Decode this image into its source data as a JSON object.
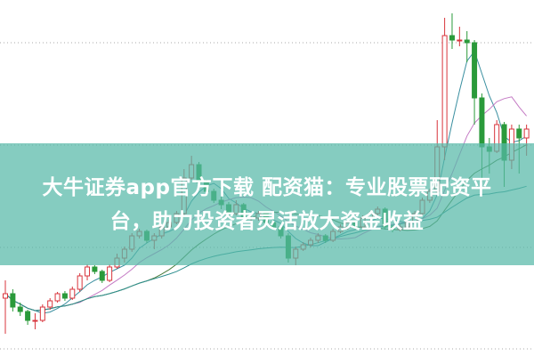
{
  "chart_data": {
    "type": "candlestick",
    "title": "",
    "xlabel": "",
    "ylabel": "",
    "ylim": [
      0,
      40
    ],
    "grid": "dotted horizontal",
    "up_color": "#d8343c",
    "down_color": "#2a9a3a",
    "ma_colors": [
      "#3a8fa0",
      "#c47ac4",
      "#4a7a3a",
      "#2f8f8f"
    ],
    "candles": [
      [
        6.5,
        8.5,
        2.5,
        7.0
      ],
      [
        7.0,
        7.5,
        5.0,
        5.5
      ],
      [
        5.5,
        6.0,
        4.5,
        5.0
      ],
      [
        5.0,
        5.2,
        3.5,
        4.0
      ],
      [
        4.0,
        4.8,
        3.0,
        4.0
      ],
      [
        4.0,
        5.8,
        3.8,
        5.5
      ],
      [
        5.5,
        6.5,
        5.2,
        6.2
      ],
      [
        6.2,
        7.2,
        6.0,
        7.0
      ],
      [
        7.0,
        7.3,
        6.2,
        6.5
      ],
      [
        6.5,
        7.8,
        6.3,
        7.5
      ],
      [
        7.5,
        9.3,
        7.2,
        9.0
      ],
      [
        9.0,
        10.3,
        8.5,
        10.0
      ],
      [
        10.0,
        10.2,
        9.2,
        9.5
      ],
      [
        9.5,
        9.7,
        8.2,
        8.5
      ],
      [
        8.5,
        10.3,
        8.3,
        10.0
      ],
      [
        10.0,
        11.5,
        9.8,
        11.0
      ],
      [
        11.0,
        12.3,
        10.5,
        12.0
      ],
      [
        12.0,
        13.8,
        11.7,
        13.5
      ],
      [
        13.5,
        14.3,
        13.2,
        14.0
      ],
      [
        14.0,
        14.2,
        12.7,
        13.0
      ],
      [
        13.0,
        13.8,
        12.0,
        13.5
      ],
      [
        13.5,
        14.8,
        13.2,
        14.5
      ],
      [
        14.5,
        15.3,
        14.2,
        15.0
      ],
      [
        15.0,
        16.3,
        14.8,
        16.0
      ],
      [
        16.0,
        21.0,
        15.8,
        20.0
      ],
      [
        20.0,
        22.5,
        19.8,
        21.5
      ],
      [
        21.5,
        21.8,
        19.2,
        19.5
      ],
      [
        19.5,
        19.8,
        18.2,
        18.5
      ],
      [
        18.5,
        18.8,
        17.2,
        17.5
      ],
      [
        17.5,
        18.0,
        16.5,
        17.0
      ],
      [
        17.0,
        17.3,
        15.7,
        16.0
      ],
      [
        16.0,
        17.5,
        15.8,
        17.0
      ],
      [
        17.0,
        17.2,
        15.2,
        15.5
      ],
      [
        15.5,
        16.0,
        15.0,
        15.5
      ],
      [
        15.5,
        16.3,
        15.2,
        16.0
      ],
      [
        16.0,
        16.2,
        14.7,
        15.0
      ],
      [
        15.0,
        15.3,
        14.2,
        14.5
      ],
      [
        14.5,
        14.8,
        13.2,
        13.5
      ],
      [
        13.5,
        13.8,
        10.5,
        11.0
      ],
      [
        11.0,
        12.3,
        10.2,
        12.0
      ],
      [
        12.0,
        12.8,
        11.8,
        12.5
      ],
      [
        12.5,
        13.3,
        12.2,
        13.0
      ],
      [
        13.0,
        13.8,
        12.7,
        13.5
      ],
      [
        13.5,
        13.7,
        12.7,
        13.0
      ],
      [
        13.0,
        14.3,
        12.8,
        14.0
      ],
      [
        14.0,
        14.8,
        13.8,
        14.5
      ],
      [
        14.5,
        15.3,
        14.2,
        15.0
      ],
      [
        15.0,
        15.2,
        14.2,
        14.5
      ],
      [
        14.5,
        15.8,
        14.3,
        15.5
      ],
      [
        15.5,
        16.3,
        15.2,
        16.0
      ],
      [
        16.0,
        16.8,
        15.8,
        16.5
      ],
      [
        16.5,
        16.7,
        14.2,
        14.5
      ],
      [
        14.5,
        14.7,
        13.9,
        14.2
      ],
      [
        14.2,
        14.8,
        14.0,
        14.5
      ],
      [
        14.5,
        15.3,
        14.3,
        15.0
      ],
      [
        15.0,
        16.3,
        14.8,
        16.0
      ],
      [
        16.0,
        17.8,
        15.8,
        17.5
      ],
      [
        17.5,
        18.8,
        17.2,
        18.5
      ],
      [
        18.5,
        26.5,
        18.2,
        23.5
      ],
      [
        23.5,
        38.0,
        22.0,
        36.0
      ],
      [
        36.0,
        38.5,
        34.5,
        35.5
      ],
      [
        35.5,
        37.0,
        34.8,
        35.5
      ],
      [
        35.5,
        36.5,
        33.0,
        35.2
      ],
      [
        35.2,
        35.5,
        26.0,
        29.0
      ],
      [
        29.0,
        29.5,
        19.5,
        23.5
      ],
      [
        23.5,
        24.5,
        20.5,
        23.0
      ],
      [
        23.0,
        26.5,
        22.8,
        26.0
      ],
      [
        26.0,
        26.3,
        19.0,
        22.0
      ],
      [
        22.0,
        26.0,
        21.0,
        25.5
      ],
      [
        25.5,
        26.0,
        20.5,
        24.5
      ],
      [
        24.5,
        26.0,
        22.5,
        25.5
      ]
    ]
  },
  "banner": {
    "line1": "大牛证券app官方下载 配资猫：专业股票配资平",
    "line2": "台，助力投资者灵活放大资金收益"
  }
}
